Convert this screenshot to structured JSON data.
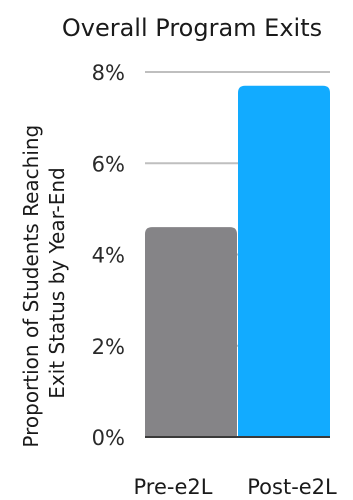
{
  "chart_data": {
    "type": "bar",
    "title": "Overall Program Exits",
    "ylabel_lines": [
      "Proportion of Students Reaching",
      "Exit Status by Year-End"
    ],
    "xlabel": "",
    "categories": [
      "Pre-e2L",
      "Post-e2L"
    ],
    "values": [
      4.6,
      7.7
    ],
    "unit": "%",
    "ylim": [
      0,
      8
    ],
    "yticks": [
      0,
      2,
      4,
      6,
      8
    ],
    "ytick_labels": [
      "0%",
      "2%",
      "4%",
      "6%",
      "8%"
    ],
    "grid": true,
    "legend": "none",
    "colors": [
      "#858487",
      "#12abff"
    ],
    "grid_color": "#bfbfbf"
  }
}
